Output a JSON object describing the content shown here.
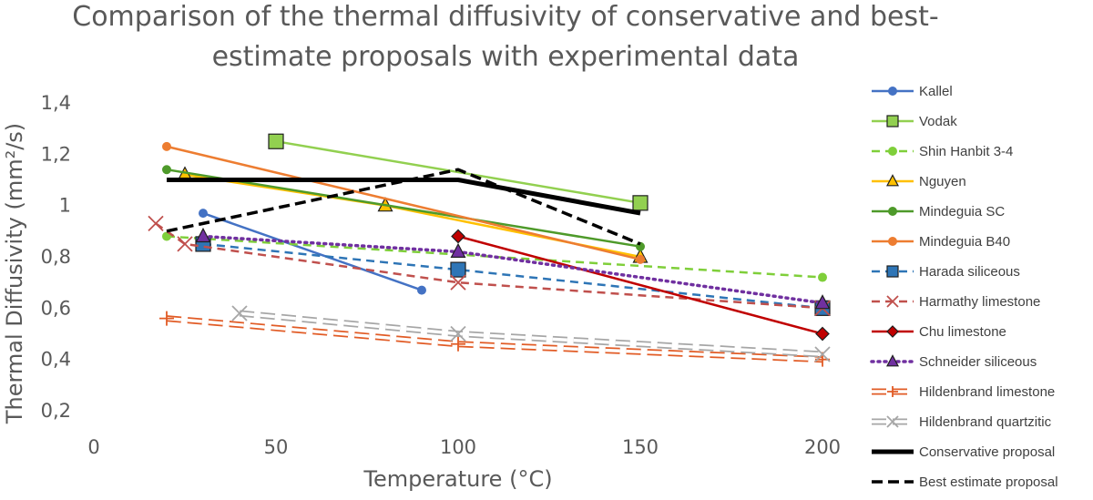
{
  "chart_data": {
    "type": "line",
    "title_line1": "Comparison of the thermal diffusivity of conservative and best-",
    "title_line2": "estimate proposals with experimental data",
    "xlabel": "Temperature (°C)",
    "ylabel": "Thermal Diffusivity (mm²/s)",
    "xlim": [
      0,
      200
    ],
    "ylim": [
      0.2,
      1.4
    ],
    "xticks": [
      0,
      50,
      100,
      150,
      200
    ],
    "xtick_labels": [
      "0",
      "50",
      "100",
      "150",
      "200"
    ],
    "yticks": [
      0.2,
      0.4,
      0.6,
      0.8,
      1.0,
      1.2,
      1.4
    ],
    "ytick_labels": [
      "0,2",
      "0,4",
      "0,6",
      "0,8",
      "1",
      "1,2",
      "1,4"
    ],
    "grid": false,
    "legend_position": "right",
    "series": [
      {
        "name": "Kallel",
        "color": "#4472C4",
        "dash": "solid",
        "marker": "circle",
        "points": [
          [
            30,
            0.97
          ],
          [
            90,
            0.67
          ]
        ]
      },
      {
        "name": "Vodak",
        "color": "#92D050",
        "dash": "solid",
        "marker": "square",
        "points": [
          [
            50,
            1.25
          ],
          [
            150,
            1.01
          ]
        ]
      },
      {
        "name": "Shin Hanbit 3-4",
        "color": "#7FCF3A",
        "dash": "dash",
        "marker": "circle",
        "points": [
          [
            20,
            0.88
          ],
          [
            200,
            0.72
          ]
        ]
      },
      {
        "name": "Nguyen",
        "color": "#FFC000",
        "dash": "solid",
        "marker": "triangle",
        "points": [
          [
            25,
            1.12
          ],
          [
            80,
            1.0
          ],
          [
            150,
            0.8
          ]
        ]
      },
      {
        "name": "Mindeguia SC",
        "color": "#4E9A2A",
        "dash": "solid",
        "marker": "circle",
        "points": [
          [
            20,
            1.14
          ],
          [
            150,
            0.84
          ]
        ]
      },
      {
        "name": "Mindeguia B40",
        "color": "#ED7D31",
        "dash": "solid",
        "marker": "circle",
        "points": [
          [
            20,
            1.23
          ],
          [
            150,
            0.79
          ]
        ]
      },
      {
        "name": "Harada siliceous",
        "color": "#2E75B6",
        "dash": "dash",
        "marker": "square",
        "points": [
          [
            30,
            0.85
          ],
          [
            100,
            0.75
          ],
          [
            200,
            0.6
          ]
        ]
      },
      {
        "name": "Harmathy limestone",
        "color": "#C0504D",
        "dash": "dash",
        "marker": "x",
        "points": [
          [
            17,
            0.93
          ],
          [
            25,
            0.85
          ],
          [
            100,
            0.7
          ],
          [
            200,
            0.6
          ]
        ]
      },
      {
        "name": "Chu limestone",
        "color": "#C00000",
        "dash": "solid",
        "marker": "diamond",
        "points": [
          [
            100,
            0.88
          ],
          [
            200,
            0.5
          ]
        ]
      },
      {
        "name": "Schneider siliceous",
        "color": "#7030A0",
        "dash": "dot",
        "marker": "triangle",
        "points": [
          [
            30,
            0.88
          ],
          [
            100,
            0.82
          ],
          [
            200,
            0.62
          ]
        ]
      },
      {
        "name": "Hildenbrand limestone",
        "color": "#E15B25",
        "dash": "double",
        "marker": "plus",
        "points": [
          [
            20,
            0.56
          ],
          [
            100,
            0.46
          ],
          [
            200,
            0.4
          ]
        ]
      },
      {
        "name": "Hildenbrand quartzitic",
        "color": "#A6A6A6",
        "dash": "double",
        "marker": "x",
        "points": [
          [
            40,
            0.58
          ],
          [
            100,
            0.5
          ],
          [
            200,
            0.42
          ]
        ]
      },
      {
        "name": "Conservative proposal",
        "color": "#000000",
        "dash": "thick",
        "marker": "none",
        "points": [
          [
            20,
            1.1
          ],
          [
            100,
            1.1
          ],
          [
            150,
            0.97
          ]
        ]
      },
      {
        "name": "Best estimate proposal",
        "color": "#000000",
        "dash": "bigdash",
        "marker": "none",
        "points": [
          [
            20,
            0.9
          ],
          [
            100,
            1.14
          ],
          [
            150,
            0.85
          ]
        ]
      }
    ]
  }
}
